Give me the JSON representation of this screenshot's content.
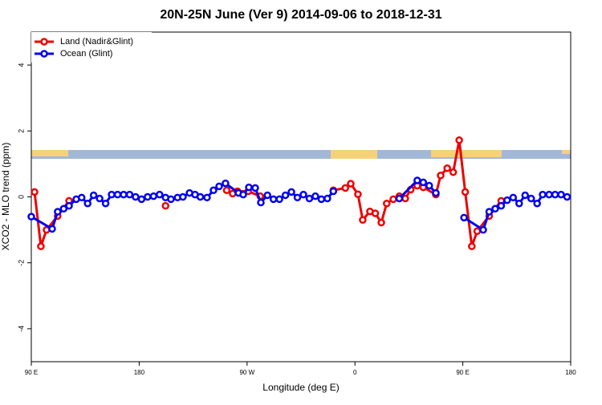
{
  "chart_data": {
    "type": "line",
    "title": "20N-25N June (Ver 9)   2014-09-06 to 2018-12-31",
    "x_label": "Longitude (deg E)",
    "y_label": "XCO2 - MLO trend (ppm)",
    "xlim": [
      90,
      540
    ],
    "xticks": [
      {
        "value": 90,
        "label": "90 E"
      },
      180,
      {
        "value": 270,
        "label": "90 W"
      },
      {
        "value": 360,
        "label": "0"
      },
      {
        "value": 450,
        "label": "90 E"
      },
      {
        "value": 540,
        "label": "180"
      }
    ],
    "ylim": [
      -5,
      5
    ],
    "yticks": [
      -4,
      -2,
      0,
      2,
      4
    ],
    "legend": "top-left",
    "series": [
      {
        "name": "Land (Nadir&Glint)",
        "color": "#ee0000",
        "x": [
          92.7,
          98,
          102.7,
          112,
          121.5,
          160,
          202,
          230,
          253,
          258,
          262,
          271,
          281,
          320,
          342,
          352,
          356.5,
          362.5,
          366.5,
          372.5,
          377,
          382,
          386.5,
          392,
          397,
          402,
          406.5,
          412,
          417,
          427.5,
          431.5,
          437,
          442,
          447,
          452,
          457.5,
          462,
          472,
          482
        ],
        "values": [
          0.15,
          -1.5,
          -1.0,
          -0.58,
          -0.12,
          null,
          -0.27,
          null,
          0.2,
          0.1,
          0.17,
          0.17,
          0.02,
          null,
          0.2,
          0.27,
          0.4,
          0.08,
          -0.7,
          -0.44,
          -0.5,
          -0.78,
          -0.2,
          -0.07,
          0.02,
          -0.05,
          0.22,
          0.34,
          0.29,
          0.07,
          0.65,
          0.87,
          0.75,
          1.72,
          0.15,
          -1.5,
          -1.04,
          -0.58,
          -0.12
        ]
      },
      {
        "name": "Ocean (Glint)",
        "color": "#0000ee",
        "x": [
          90,
          107.4,
          112,
          117,
          121.5,
          127.5,
          132,
          137,
          142,
          147,
          152,
          157,
          162,
          167,
          172,
          177,
          182,
          187,
          192,
          197,
          202,
          206.5,
          212,
          216.5,
          222,
          226.6,
          231,
          236.6,
          242,
          246.7,
          252,
          262.8,
          266.8,
          271.5,
          276.8,
          281.5,
          287,
          292,
          297,
          302,
          307,
          312,
          317,
          322,
          327,
          332,
          337,
          342,
          370,
          397,
          412,
          417,
          422,
          427.5,
          440,
          451,
          467,
          472,
          477,
          482,
          487,
          492,
          497,
          502,
          507,
          512,
          516.6,
          522,
          527,
          532,
          537
        ],
        "values": [
          -0.6,
          -0.97,
          -0.45,
          -0.36,
          -0.27,
          -0.07,
          -0.02,
          -0.2,
          0.05,
          -0.05,
          -0.2,
          0.07,
          0.07,
          0.07,
          0.07,
          0,
          -0.07,
          0,
          0.02,
          0.07,
          -0.02,
          -0.07,
          -0.02,
          0,
          0.12,
          0.07,
          0,
          -0.02,
          0.2,
          0.32,
          0.41,
          0.12,
          0.07,
          0.29,
          0.27,
          -0.17,
          0.05,
          -0.07,
          -0.07,
          0.05,
          0.15,
          -0.02,
          0.07,
          -0.05,
          0.02,
          -0.07,
          -0.05,
          0.17,
          null,
          -0.05,
          0.5,
          0.44,
          0.34,
          0.12,
          null,
          -0.63,
          -1.0,
          -0.45,
          -0.36,
          -0.27,
          -0.1,
          -0.02,
          -0.2,
          0.05,
          -0.05,
          -0.2,
          0.07,
          0.07,
          0.07,
          0.07,
          0
        ]
      }
    ]
  }
}
